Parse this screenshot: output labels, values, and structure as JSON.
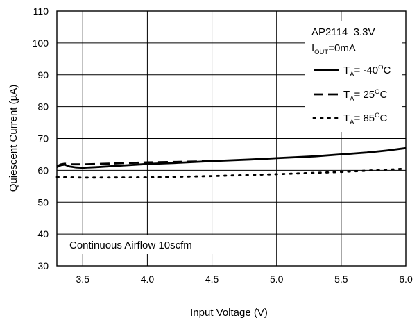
{
  "chart_data": {
    "type": "line",
    "xlabel": "Input Voltage (V)",
    "ylabel": "Quiescent Current (µA)",
    "xlim": [
      3.3,
      6.0
    ],
    "ylim": [
      30,
      110
    ],
    "xticks": [
      3.5,
      4.0,
      4.5,
      5.0,
      5.5,
      6.0
    ],
    "xtick_labels": [
      "3.5",
      "4.0",
      "4.5",
      "5.0",
      "5.5",
      "6.0"
    ],
    "yticks": [
      30,
      40,
      50,
      60,
      70,
      80,
      90,
      100,
      110
    ],
    "ytick_labels": [
      "30",
      "40",
      "50",
      "60",
      "70",
      "80",
      "90",
      "100",
      "110"
    ],
    "grid": true,
    "legend_position": "top-right",
    "legend_header": {
      "device": "AP2114_3.3V",
      "iout_main": "I",
      "iout_sub": "OUT",
      "iout_rest": "=0mA"
    },
    "series": [
      {
        "name": "TA= -40°C",
        "label_main": "T",
        "label_sub": "A",
        "label_value": "= -40",
        "label_sup": "O",
        "label_unit": "C",
        "style": "solid",
        "x": [
          3.3,
          3.33,
          3.36,
          3.4,
          3.45,
          3.5,
          3.6,
          3.8,
          4.0,
          4.2,
          4.5,
          4.8,
          5.0,
          5.3,
          5.5,
          5.7,
          5.85,
          6.0
        ],
        "y": [
          61.0,
          61.6,
          61.8,
          61.2,
          60.9,
          60.8,
          61.0,
          61.5,
          62.0,
          62.3,
          62.9,
          63.4,
          63.8,
          64.4,
          65.0,
          65.6,
          66.2,
          67.0
        ]
      },
      {
        "name": "TA= 25°C",
        "label_main": "T",
        "label_sub": "A",
        "label_value": "= 25",
        "label_sup": "O",
        "label_unit": "C",
        "style": "dashed",
        "x": [
          3.3,
          3.33,
          3.36,
          3.4,
          3.5,
          3.7,
          4.0,
          4.3,
          4.5
        ],
        "y": [
          61.2,
          61.9,
          62.1,
          61.9,
          61.9,
          62.1,
          62.5,
          62.7,
          62.9
        ]
      },
      {
        "name": "TA= 85°C",
        "label_main": "T",
        "label_sub": "A",
        "label_value": "= 85",
        "label_sup": "O",
        "label_unit": "C",
        "style": "dotted",
        "x": [
          3.3,
          3.5,
          4.0,
          4.5,
          5.0,
          5.5,
          6.0
        ],
        "y": [
          57.9,
          57.7,
          57.8,
          58.2,
          58.8,
          59.5,
          60.5
        ]
      }
    ],
    "annotation": "Continuous Airflow 10scfm"
  }
}
